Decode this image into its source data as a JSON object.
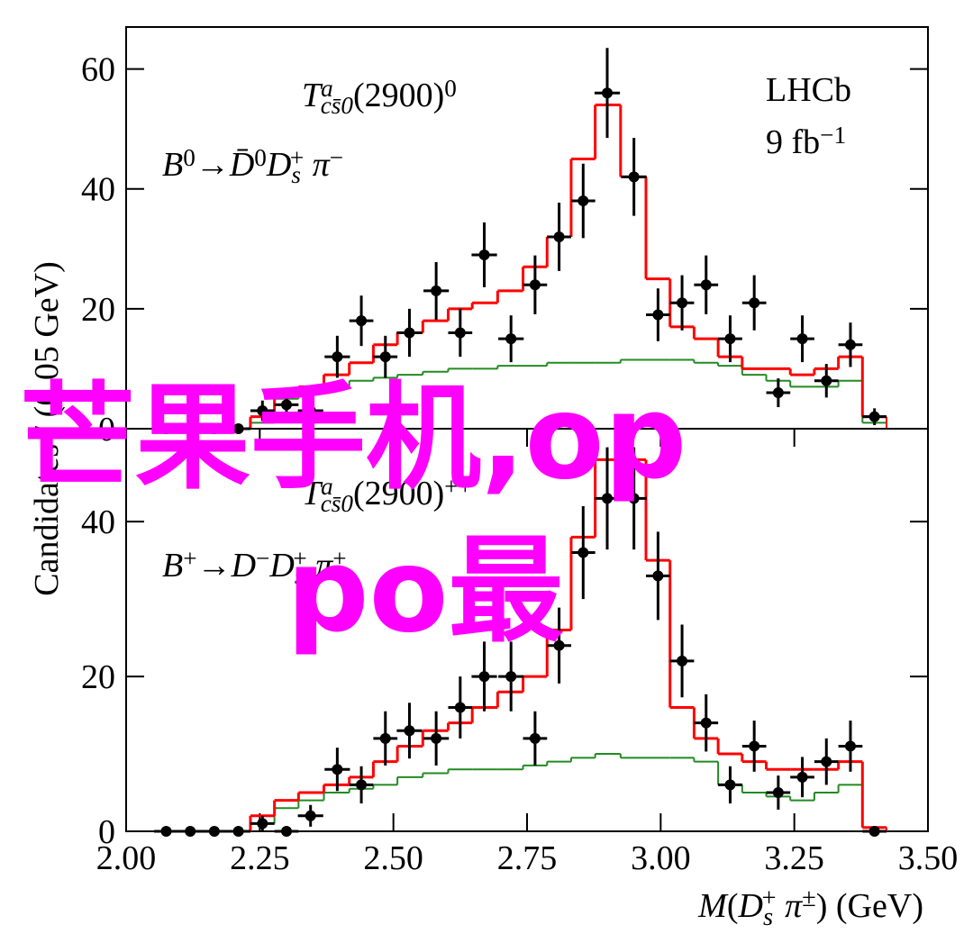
{
  "chart_data": [
    {
      "type": "errorbar-step",
      "annotations": [
        [
          {
            "text": "T",
            "italic": true
          },
          {
            "text": "a",
            "pos": "sup",
            "italic": true
          },
          {
            "text": "cs̄0",
            "pos": "sub",
            "italic": true
          },
          {
            "text": "(2900)"
          },
          {
            "text": "0",
            "pos": "sup"
          }
        ],
        [
          {
            "text": "B",
            "italic": true
          },
          {
            "text": "0",
            "pos": "sup"
          },
          {
            "text": "→"
          },
          {
            "text": "D̄",
            "italic": true
          },
          {
            "text": "0",
            "pos": "sup"
          },
          {
            "text": "D",
            "italic": true
          },
          {
            "text": "s",
            "pos": "sub",
            "italic": true
          },
          {
            "text": "+",
            "pos": "sup"
          },
          {
            "text": " π",
            "italic": true
          },
          {
            "text": "−",
            "pos": "sup"
          }
        ],
        [
          {
            "text": "LHCb"
          }
        ],
        [
          {
            "text": "9 fb"
          },
          {
            "text": "−1",
            "pos": "sup"
          }
        ]
      ],
      "ylabel": "Candidates / (0.05 GeV)",
      "x": [
        2.075,
        2.12,
        2.165,
        2.21,
        2.255,
        2.3,
        2.345,
        2.395,
        2.44,
        2.485,
        2.53,
        2.58,
        2.625,
        2.67,
        2.72,
        2.765,
        2.81,
        2.855,
        2.9,
        2.95,
        2.995,
        3.04,
        3.085,
        3.13,
        3.175,
        3.22,
        3.265,
        3.31,
        3.355,
        3.4
      ],
      "series": [
        {
          "style": "points",
          "color": "#000000",
          "values": [
            0,
            0,
            0,
            0,
            3,
            4,
            3,
            12,
            18,
            12,
            16,
            23,
            16,
            29,
            15,
            24,
            32,
            38,
            56,
            42,
            19,
            21,
            24,
            15,
            21,
            6,
            15,
            8,
            14,
            2
          ],
          "errors": [
            0,
            0,
            0,
            0,
            1.7,
            2,
            1.7,
            3.5,
            4.2,
            3.5,
            4,
            4.8,
            4,
            5.4,
            3.9,
            4.9,
            5.7,
            6.2,
            7.5,
            6.5,
            4.4,
            4.6,
            4.9,
            3.9,
            4.6,
            2.4,
            3.9,
            2.8,
            3.7,
            1.4
          ]
        },
        {
          "style": "step",
          "color": "#ff0000",
          "values": [
            0,
            0,
            0,
            0,
            2,
            6,
            7,
            9,
            11,
            14,
            16,
            18,
            20,
            21,
            23,
            27,
            32,
            45,
            54,
            42,
            25,
            17,
            15,
            12,
            10,
            10,
            9,
            10,
            12,
            2
          ]
        },
        {
          "style": "step",
          "color": "#228b22",
          "values": [
            0,
            0,
            0,
            0,
            1,
            5,
            6,
            7,
            8,
            8.5,
            9,
            9.5,
            10,
            10,
            10.5,
            10.5,
            11,
            11,
            11,
            11.5,
            11.5,
            11.5,
            11,
            10.5,
            9,
            8,
            7,
            7,
            8,
            1
          ]
        }
      ],
      "xlim": [
        2.0,
        3.5
      ],
      "ylim": [
        0,
        67
      ],
      "yticks": [
        0,
        20,
        40,
        60
      ]
    },
    {
      "type": "errorbar-step",
      "annotations": [
        [
          {
            "text": "T",
            "italic": true
          },
          {
            "text": "a",
            "pos": "sup",
            "italic": true
          },
          {
            "text": "cs̄0",
            "pos": "sub",
            "italic": true
          },
          {
            "text": "(2900)"
          },
          {
            "text": "++",
            "pos": "sup"
          }
        ],
        [
          {
            "text": "B",
            "italic": true
          },
          {
            "text": "+",
            "pos": "sup"
          },
          {
            "text": "→"
          },
          {
            "text": "D",
            "italic": true
          },
          {
            "text": "−",
            "pos": "sup"
          },
          {
            "text": "D",
            "italic": true
          },
          {
            "text": "s",
            "pos": "sub",
            "italic": true
          },
          {
            "text": "+",
            "pos": "sup"
          },
          {
            "text": " π",
            "italic": true
          },
          {
            "text": "+",
            "pos": "sup"
          }
        ]
      ],
      "xlabel": [
        {
          "text": "M",
          "italic": true
        },
        {
          "text": "("
        },
        {
          "text": "D",
          "italic": true
        },
        {
          "text": "s",
          "pos": "sub",
          "italic": true
        },
        {
          "text": "+",
          "pos": "sup"
        },
        {
          "text": " π",
          "italic": true
        },
        {
          "text": "±",
          "pos": "sup"
        },
        {
          "text": ") (GeV)"
        }
      ],
      "x": [
        2.075,
        2.12,
        2.165,
        2.21,
        2.255,
        2.3,
        2.345,
        2.395,
        2.44,
        2.485,
        2.53,
        2.58,
        2.625,
        2.67,
        2.72,
        2.765,
        2.81,
        2.855,
        2.9,
        2.95,
        2.995,
        3.04,
        3.085,
        3.13,
        3.175,
        3.22,
        3.265,
        3.31,
        3.355,
        3.4
      ],
      "series": [
        {
          "style": "points",
          "color": "#000000",
          "values": [
            0,
            0,
            0,
            0,
            1,
            0,
            2,
            8,
            6,
            12,
            13,
            12,
            16,
            20,
            20,
            12,
            24,
            36,
            43,
            43,
            33,
            22,
            14,
            6,
            11,
            5,
            7,
            9,
            11,
            0
          ],
          "errors": [
            0,
            0,
            0,
            0,
            1,
            0,
            1.4,
            2.8,
            2.4,
            3.5,
            3.6,
            3.5,
            4,
            4.5,
            4.5,
            3.5,
            4.9,
            6,
            6.6,
            6.6,
            5.7,
            4.7,
            3.7,
            2.4,
            3.3,
            2.2,
            2.6,
            3,
            3.3,
            0
          ]
        },
        {
          "style": "step",
          "color": "#ff0000",
          "values": [
            0,
            0,
            0,
            0,
            2,
            4,
            5,
            6,
            7,
            9,
            11,
            13,
            14,
            16,
            18,
            20,
            26,
            38,
            48,
            48,
            35,
            16,
            12,
            10,
            9,
            8,
            8,
            8,
            9,
            0.5
          ]
        },
        {
          "style": "step",
          "color": "#228b22",
          "values": [
            0,
            0,
            0,
            0,
            1,
            3,
            4,
            5,
            5.5,
            6,
            7,
            7.5,
            8,
            8,
            8,
            8.5,
            9,
            9.5,
            10,
            9.5,
            9.5,
            9.5,
            9,
            6,
            5,
            4.5,
            4,
            5,
            6,
            0.5
          ]
        }
      ],
      "xlim": [
        2.0,
        3.5
      ],
      "xticks": [
        {
          "value": 2.0,
          "label": "2.00"
        },
        {
          "value": 2.25,
          "label": "2.25"
        },
        {
          "value": 2.5,
          "label": "2.50"
        },
        {
          "value": 2.75,
          "label": "2.75"
        },
        {
          "value": 3.0,
          "label": "3.00"
        },
        {
          "value": 3.25,
          "label": "3.25"
        },
        {
          "value": 3.5,
          "label": "3.50"
        }
      ],
      "ylim": [
        0,
        52
      ],
      "yticks": [
        0,
        20,
        40
      ]
    }
  ],
  "watermark": [
    "芒果手机,op",
    "po最"
  ]
}
